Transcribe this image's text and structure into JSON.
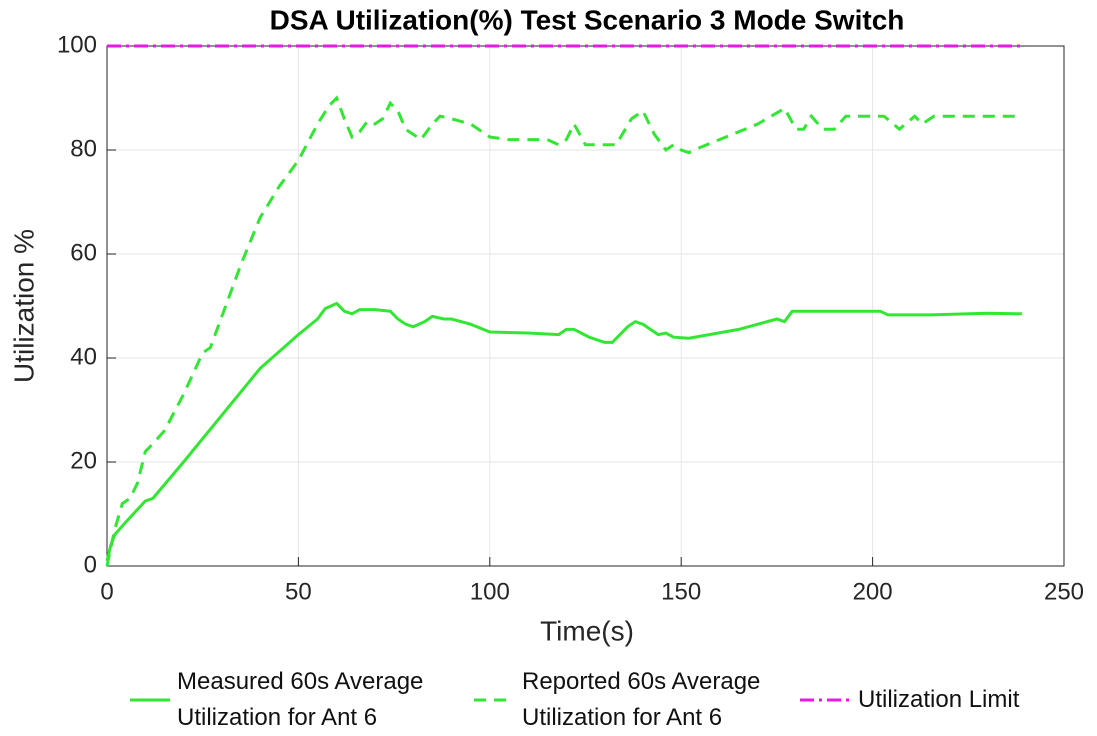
{
  "chart_data": {
    "type": "line",
    "title": "DSA Utilization(%) Test Scenario 3 Mode Switch",
    "x_label": "Time(s)",
    "y_label": "Utilization %",
    "xlim": [
      0,
      250
    ],
    "xticks": [
      0,
      50,
      100,
      150,
      200,
      250
    ],
    "ylim": [
      0,
      100
    ],
    "yticks": [
      0,
      20,
      40,
      60,
      80,
      100
    ],
    "grid": true,
    "legend": "bottom",
    "series": [
      {
        "name": "Measured 60s Average Utilization for Ant 6",
        "color": "#33e633",
        "style": "solid",
        "x": [
          0,
          1,
          2,
          5,
          10,
          12,
          20,
          30,
          40,
          50,
          55,
          57,
          60,
          62,
          64,
          66,
          70,
          74,
          76,
          78,
          80,
          83,
          85,
          88,
          90,
          95,
          100,
          110,
          118,
          120,
          122,
          126,
          130,
          132,
          134,
          136,
          138,
          140,
          144,
          146,
          148,
          152,
          165,
          175,
          177,
          179,
          190,
          202,
          204,
          215,
          230,
          239
        ],
        "values": [
          1,
          4,
          6,
          8.5,
          12.5,
          13,
          20,
          29,
          38,
          44.5,
          47.5,
          49.5,
          50.5,
          49,
          48.5,
          49.3,
          49.3,
          49,
          47.5,
          46.5,
          46,
          47,
          48,
          47.5,
          47.5,
          46.5,
          45,
          44.8,
          44.5,
          45.5,
          45.5,
          44,
          43,
          43,
          44.5,
          46,
          47,
          46.5,
          44.5,
          44.8,
          44,
          43.8,
          45.5,
          47.5,
          47,
          49,
          49,
          49,
          48.3,
          48.3,
          48.6,
          48.5
        ]
      },
      {
        "name": "Reported 60s Average Utilization for Ant 6",
        "color": "#33e633",
        "style": "dashed",
        "x": [
          0,
          2,
          4,
          6,
          8,
          10,
          12,
          15,
          20,
          25,
          27,
          30,
          35,
          40,
          45,
          50,
          55,
          58,
          60,
          62,
          64,
          66,
          68,
          70,
          72,
          74,
          76,
          78,
          82,
          85,
          87,
          90,
          95,
          100,
          105,
          115,
          118,
          120,
          122,
          125,
          128,
          133,
          137,
          140,
          143,
          146,
          148,
          150,
          152,
          155,
          160,
          170,
          177,
          180,
          182,
          184,
          187,
          190,
          193,
          203,
          207,
          211,
          213,
          216,
          239
        ],
        "values": [
          0,
          7,
          12,
          13,
          16,
          22,
          23.5,
          26,
          33,
          41,
          42,
          48,
          58,
          67,
          73,
          78,
          85,
          88.5,
          90,
          86,
          82.5,
          83.5,
          85.5,
          85,
          86,
          89,
          87.5,
          84,
          82,
          85,
          86.5,
          86,
          85,
          82.5,
          82,
          82,
          81,
          82,
          85,
          81,
          81,
          81,
          86,
          87.5,
          83,
          80,
          81,
          80,
          79.5,
          80.5,
          82,
          85,
          88,
          84,
          84,
          86.5,
          84,
          84,
          86.5,
          86.5,
          84,
          86.5,
          85,
          86.5,
          86.5
        ]
      },
      {
        "name": "Utilization Limit",
        "color": "#e619e6",
        "style": "dashdot",
        "x": [
          0,
          239
        ],
        "values": [
          100,
          100
        ]
      }
    ]
  }
}
